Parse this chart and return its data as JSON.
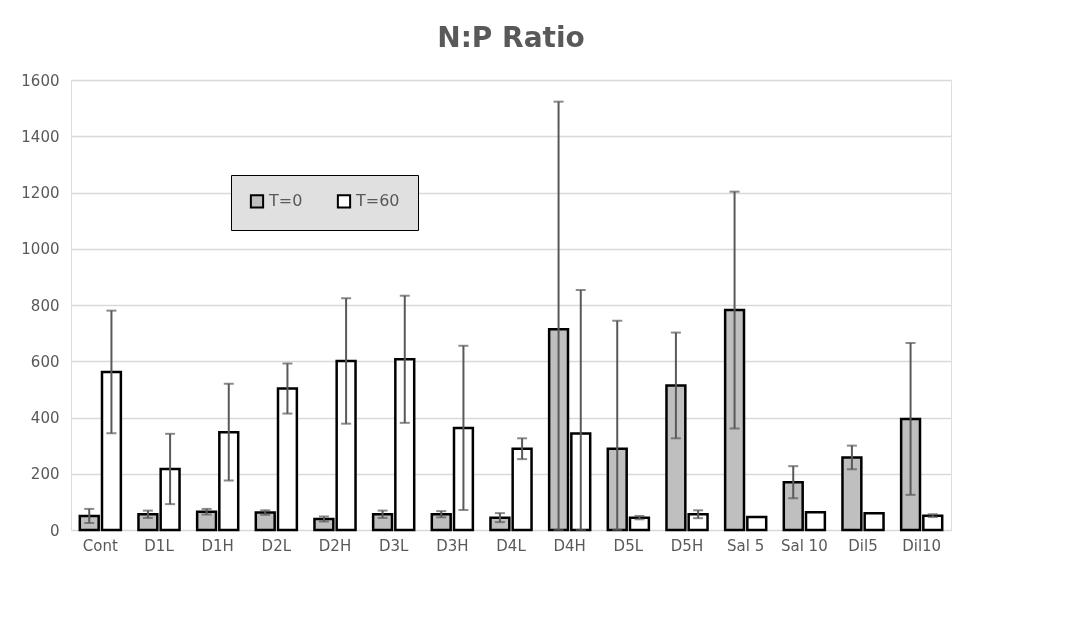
{
  "chart_data": {
    "type": "bar",
    "title": "N:P Ratio",
    "categories": [
      "Cont",
      "D1L",
      "D1H",
      "D2L",
      "D2H",
      "D3L",
      "D3H",
      "D4L",
      "D4H",
      "D5L",
      "D5H",
      "Sal 5",
      "Sal 10",
      "Dil5",
      "Dil10"
    ],
    "series": [
      {
        "name": "T=0",
        "color": "#bfbfbf",
        "values": [
          50,
          56,
          65,
          62,
          39,
          56,
          56,
          44,
          714,
          289,
          514,
          782,
          170,
          258,
          395
        ],
        "errors": [
          25,
          13,
          10,
          8,
          9,
          13,
          11,
          16,
          [
            0,
            1523
          ],
          [
            0,
            744
          ],
          188,
          421,
          57,
          42,
          270
        ]
      },
      {
        "name": "T=60",
        "color": "#ffffff",
        "values": [
          562,
          217,
          348,
          503,
          601,
          607,
          363,
          289,
          343,
          44,
          56,
          46,
          63,
          60,
          51
        ],
        "errors": [
          218,
          125,
          172,
          89,
          223,
          226,
          292,
          37,
          [
            0,
            853
          ],
          6,
          14,
          null,
          null,
          null,
          5
        ]
      }
    ],
    "ylim": [
      0,
      1600
    ],
    "yticks": [
      0,
      200,
      400,
      600,
      800,
      1000,
      1200,
      1400,
      1600
    ],
    "grid": "y",
    "legend": "top left"
  }
}
